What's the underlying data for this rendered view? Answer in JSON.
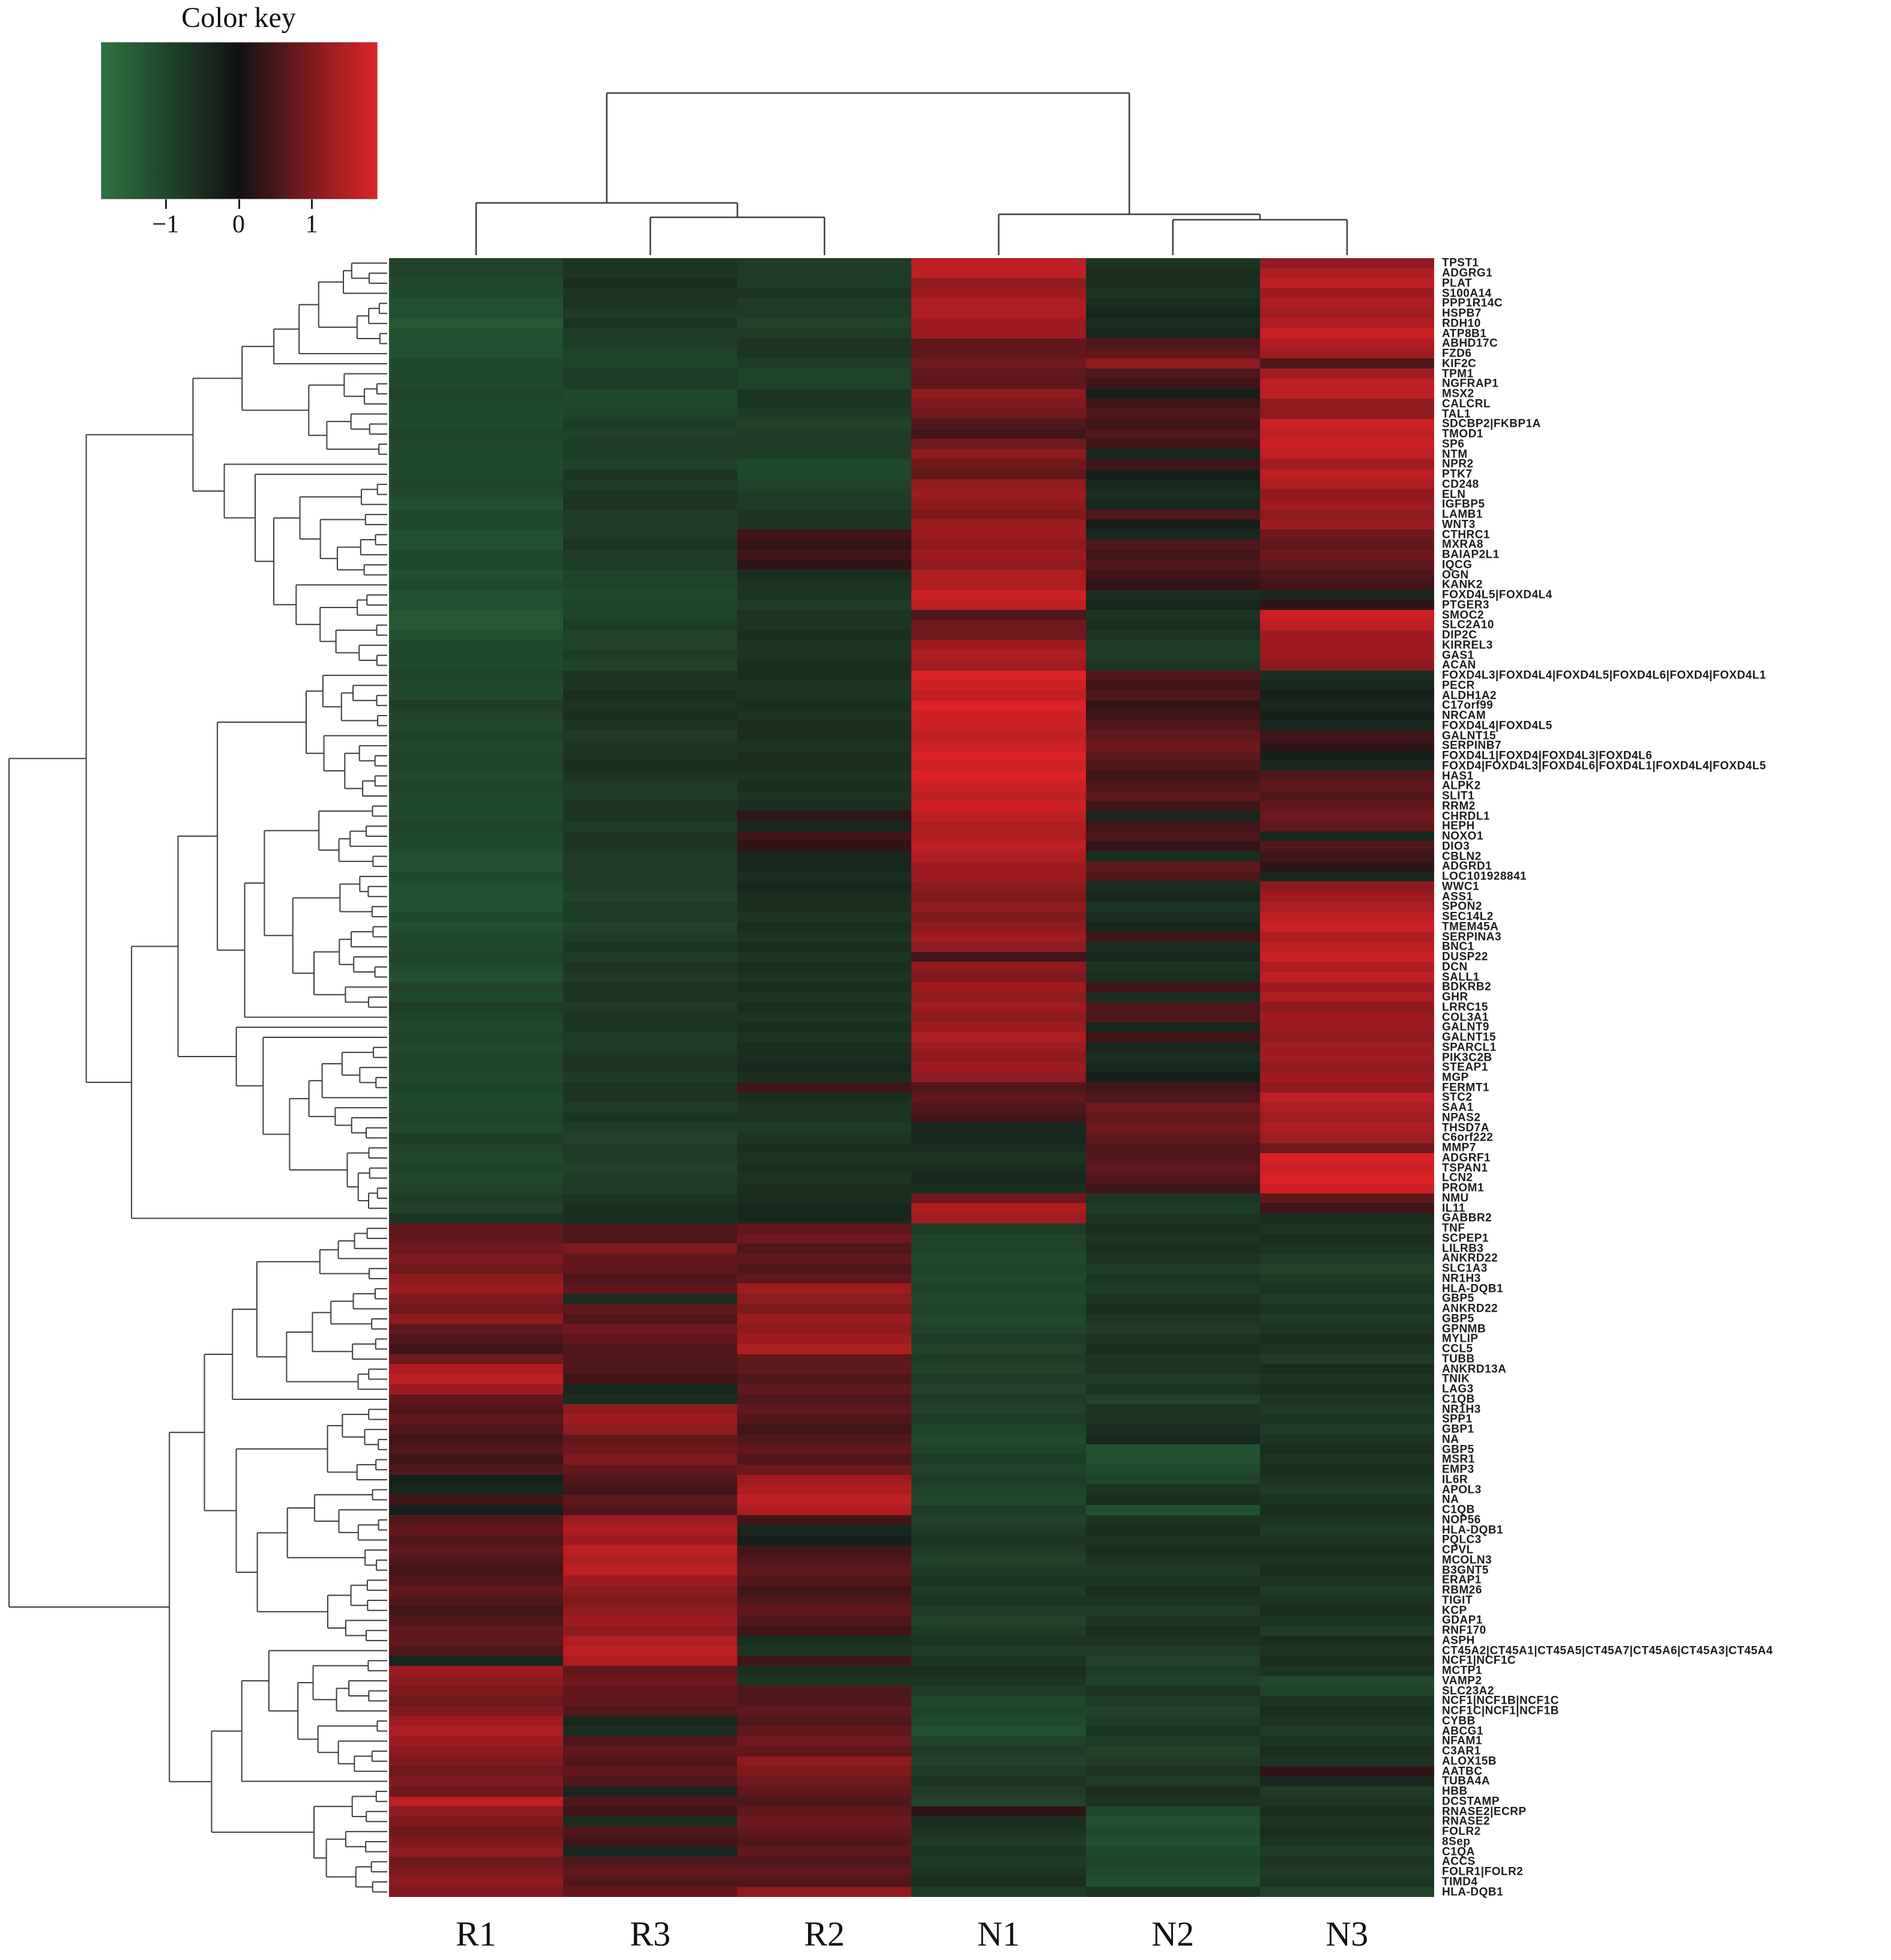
{
  "color_key": {
    "title": "Color key",
    "ticks": [
      "−1",
      "0",
      "1"
    ],
    "tick_positions_pct": [
      23.5,
      50,
      76.5
    ],
    "gradient_left_color": "#2d7340",
    "gradient_mid_color": "#121214",
    "gradient_right_color": "#e02428"
  },
  "chart_data": {
    "type": "heatmap",
    "title": "Color key",
    "legend_ticks": [
      -1,
      0,
      1
    ],
    "value_range": [
      -1.4,
      1.4
    ],
    "grid": false,
    "legend_position": "top-left",
    "column_dendrogram": "((R1,(R3,R2)),(N1,(N2,N3)))",
    "row_dendrogram": "two major clusters: rows TPST1..GABBR2 (down in R / up in N), rows TNF..HLA-DQB1 (up in R / down in N)",
    "columns": [
      "R1",
      "R3",
      "R2",
      "N1",
      "N2",
      "N3"
    ],
    "rows": [
      "TPST1",
      "ADGRG1",
      "PLAT",
      "S100A14",
      "PPP1R14C",
      "HSPB7",
      "RDH10",
      "ATP8B1",
      "ABHD17C",
      "FZD6",
      "KIF2C",
      "TPM1",
      "NGFRAP1",
      "MSX2",
      "CALCRL",
      "TAL1",
      "SDCBP2|FKBP1A",
      "TMOD1",
      "SP6",
      "NTM",
      "NPR2",
      "PTK7",
      "CD248",
      "ELN",
      "IGFBP5",
      "LAMB1",
      "WNT3",
      "CTHRC1",
      "MXRA8",
      "BAIAP2L1",
      "IQCG",
      "OGN",
      "KANK2",
      "FOXD4L5|FOXD4L4",
      "PTGER3",
      "SMOC2",
      "SLC2A10",
      "DIP2C",
      "KIRREL3",
      "GAS1",
      "ACAN",
      "FOXD4L3|FOXD4L4|FOXD4L5|FOXD4L6|FOXD4|FOXD4L1",
      "PECR",
      "ALDH1A2",
      "C17orf99",
      "NRCAM",
      "FOXD4L4|FOXD4L5",
      "GALNT15",
      "SERPINB7",
      "FOXD4L1|FOXD4|FOXD4L3|FOXD4L6",
      "FOXD4|FOXD4L3|FOXD4L6|FOXD4L1|FOXD4L4|FOXD4L5",
      "HAS1",
      "ALPK2",
      "SLIT1",
      "RRM2",
      "CHRDL1",
      "HEPH",
      "NOXO1",
      "DIO3",
      "CBLN2",
      "ADGRD1",
      "LOC101928841",
      "WWC1",
      "ASS1",
      "SPON2",
      "SEC14L2",
      "TMEM45A",
      "SERPINA3",
      "BNC1",
      "DUSP22",
      "DCN",
      "SALL1",
      "BDKRB2",
      "GHR",
      "LRRC15",
      "COL3A1",
      "GALNT9",
      "GALNT15",
      "SPARCL1",
      "PIK3C2B",
      "STEAP1",
      "MGP",
      "FERMT1",
      "STC2",
      "SAA1",
      "NPAS2",
      "THSD7A",
      "C6orf222",
      "MMP7",
      "ADGRF1",
      "TSPAN1",
      "LCN2",
      "PROM1",
      "NMU",
      "IL11",
      "GABBR2",
      "TNF",
      "SCPEP1",
      "LILRB3",
      "ANKRD22",
      "SLC1A3",
      "NR1H3",
      "HLA-DQB1",
      "GBP5",
      "ANKRD22",
      "GBP5",
      "GPNMB",
      "MYLIP",
      "CCL5",
      "TUBB",
      "ANKRD13A",
      "TNIK",
      "LAG3",
      "C1QB",
      "NR1H3",
      "SPP1",
      "GBP1",
      "NA",
      "GBP5",
      "MSR1",
      "EMP3",
      "IL6R",
      "APOL3",
      "NA",
      "C1QB",
      "NOP56",
      "HLA-DQB1",
      "PQLC3",
      "CPVL",
      "MCOLN3",
      "B3GNT5",
      "ERAP1",
      "RBM26",
      "TIGIT",
      "KCP",
      "GDAP1",
      "RNF170",
      "ASPH",
      "CT45A2|CT45A1|CT45A5|CT45A7|CT45A6|CT45A3|CT45A4",
      "NCF1|NCF1C",
      "MCTP1",
      "VAMP2",
      "SLC23A2",
      "NCF1|NCF1B|NCF1C",
      "NCF1C|NCF1|NCF1B",
      "CYBB",
      "ABCG1",
      "NFAM1",
      "C3AR1",
      "ALOX15B",
      "AATBC",
      "TUBA4A",
      "HBB",
      "DCSTAMP",
      "RNASE2|ECRP",
      "RNASE2",
      "FOLR2",
      "8Sep",
      "C1QA",
      "ACCS",
      "FOLR1|FOLR2",
      "TIMD4",
      "HLA-DQB1"
    ],
    "values": [
      [
        -0.7,
        -0.5,
        -0.6,
        1.1,
        -0.5,
        0.8
      ],
      [
        -0.7,
        -0.5,
        -0.6,
        1.1,
        -0.4,
        1.0
      ],
      [
        -0.8,
        -0.4,
        -0.6,
        0.8,
        -0.4,
        1.1
      ],
      [
        -0.8,
        -0.5,
        -0.5,
        0.9,
        -0.5,
        0.9
      ],
      [
        -0.9,
        -0.5,
        -0.6,
        1.0,
        -0.4,
        1.0
      ],
      [
        -0.9,
        -0.6,
        -0.6,
        1.0,
        -0.3,
        0.9
      ],
      [
        -1.0,
        -0.5,
        -0.7,
        0.9,
        -0.4,
        1.0
      ],
      [
        -0.9,
        -0.6,
        -0.6,
        0.9,
        -0.3,
        1.2
      ],
      [
        -0.9,
        -0.6,
        -0.5,
        0.5,
        0.4,
        1.0
      ],
      [
        -0.9,
        -0.7,
        -0.5,
        0.5,
        0.5,
        0.9
      ],
      [
        -0.8,
        -0.7,
        -0.6,
        0.6,
        0.8,
        0.4
      ],
      [
        -0.8,
        -0.6,
        -0.7,
        0.5,
        0.4,
        0.9
      ],
      [
        -0.8,
        -0.6,
        -0.7,
        0.5,
        0.3,
        1.1
      ],
      [
        -0.7,
        -0.8,
        -0.5,
        0.8,
        -0.2,
        1.1
      ],
      [
        -0.8,
        -0.8,
        -0.5,
        0.7,
        0.3,
        0.8
      ],
      [
        -0.8,
        -0.7,
        -0.6,
        0.6,
        0.4,
        0.8
      ],
      [
        -0.8,
        -0.6,
        -0.7,
        0.4,
        0.3,
        1.2
      ],
      [
        -0.7,
        -0.7,
        -0.6,
        0.3,
        0.4,
        1.1
      ],
      [
        -0.8,
        -0.6,
        -0.6,
        0.6,
        0.3,
        1.2
      ],
      [
        -0.8,
        -0.6,
        -0.6,
        0.8,
        -0.3,
        1.1
      ],
      [
        -0.8,
        -0.7,
        -0.8,
        0.6,
        0.3,
        0.9
      ],
      [
        -0.8,
        -0.5,
        -0.8,
        0.5,
        -0.2,
        1.1
      ],
      [
        -0.7,
        -0.6,
        -0.7,
        0.8,
        -0.3,
        1.0
      ],
      [
        -0.8,
        -0.5,
        -0.6,
        0.9,
        -0.4,
        0.8
      ],
      [
        -0.9,
        -0.5,
        -0.6,
        0.8,
        -0.3,
        0.9
      ],
      [
        -0.8,
        -0.6,
        -0.5,
        0.7,
        0.4,
        0.8
      ],
      [
        -0.8,
        -0.6,
        -0.5,
        0.9,
        -0.2,
        0.9
      ],
      [
        -0.9,
        -0.6,
        0.3,
        0.9,
        -0.3,
        0.6
      ],
      [
        -0.9,
        -0.5,
        0.2,
        0.8,
        0.4,
        0.5
      ],
      [
        -0.8,
        -0.6,
        0.3,
        0.9,
        0.3,
        0.6
      ],
      [
        -0.8,
        -0.6,
        0.2,
        0.8,
        0.4,
        0.5
      ],
      [
        -0.9,
        -0.7,
        -0.4,
        1.0,
        0.3,
        0.4
      ],
      [
        -0.8,
        -0.7,
        -0.5,
        1.0,
        0.2,
        0.3
      ],
      [
        -0.9,
        -0.8,
        -0.5,
        1.2,
        -0.4,
        -0.3
      ],
      [
        -0.9,
        -0.7,
        -0.6,
        1.1,
        -0.3,
        0.2
      ],
      [
        -1.0,
        -0.7,
        -0.5,
        0.4,
        -0.5,
        1.2
      ],
      [
        -1.0,
        -0.6,
        -0.5,
        0.6,
        -0.4,
        1.1
      ],
      [
        -0.9,
        -0.7,
        -0.4,
        0.6,
        -0.5,
        0.9
      ],
      [
        -0.8,
        -0.7,
        -0.5,
        0.9,
        -0.6,
        0.9
      ],
      [
        -0.8,
        -0.6,
        -0.5,
        1.0,
        -0.6,
        0.9
      ],
      [
        -0.8,
        -0.7,
        -0.4,
        0.9,
        -0.5,
        0.8
      ],
      [
        -0.7,
        -0.5,
        -0.4,
        1.3,
        0.4,
        -0.4
      ],
      [
        -0.8,
        -0.5,
        -0.5,
        1.2,
        0.3,
        -0.3
      ],
      [
        -0.8,
        -0.4,
        -0.5,
        1.1,
        0.4,
        -0.2
      ],
      [
        -0.6,
        -0.5,
        -0.4,
        1.3,
        0.2,
        -0.3
      ],
      [
        -0.7,
        -0.4,
        -0.5,
        1.2,
        0.3,
        -0.2
      ],
      [
        -0.8,
        -0.5,
        -0.4,
        1.2,
        0.4,
        -0.3
      ],
      [
        -0.7,
        -0.6,
        -0.4,
        1.1,
        0.5,
        0.3
      ],
      [
        -0.8,
        -0.5,
        -0.5,
        1.2,
        0.6,
        0.2
      ],
      [
        -0.7,
        -0.5,
        -0.4,
        1.3,
        0.5,
        -0.2
      ],
      [
        -0.7,
        -0.4,
        -0.4,
        1.2,
        0.4,
        -0.3
      ],
      [
        -0.8,
        -0.5,
        -0.5,
        1.3,
        0.3,
        0.4
      ],
      [
        -0.7,
        -0.6,
        -0.4,
        1.2,
        0.4,
        0.5
      ],
      [
        -0.8,
        -0.6,
        -0.5,
        1.1,
        0.5,
        0.4
      ],
      [
        -0.8,
        -0.5,
        -0.4,
        1.2,
        0.3,
        0.5
      ],
      [
        -0.8,
        -0.5,
        0.2,
        1.1,
        -0.3,
        0.6
      ],
      [
        -0.7,
        -0.6,
        -0.3,
        1.0,
        0.3,
        0.5
      ],
      [
        -0.8,
        -0.5,
        0.3,
        1.0,
        0.4,
        -0.3
      ],
      [
        -0.8,
        -0.5,
        0.2,
        1.1,
        0.2,
        0.4
      ],
      [
        -0.9,
        -0.6,
        -0.3,
        1.0,
        -0.4,
        0.3
      ],
      [
        -0.9,
        -0.6,
        -0.3,
        0.9,
        0.5,
        0.2
      ],
      [
        -0.8,
        -0.6,
        -0.4,
        0.9,
        0.4,
        -0.3
      ],
      [
        -0.9,
        -0.6,
        -0.3,
        0.8,
        -0.4,
        0.8
      ],
      [
        -0.9,
        -0.7,
        -0.4,
        0.7,
        -0.3,
        0.9
      ],
      [
        -0.9,
        -0.6,
        -0.4,
        0.8,
        -0.5,
        1.0
      ],
      [
        -0.8,
        -0.6,
        -0.5,
        0.7,
        -0.4,
        1.1
      ],
      [
        -0.9,
        -0.7,
        -0.4,
        0.8,
        -0.3,
        1.2
      ],
      [
        -0.8,
        -0.6,
        -0.5,
        0.9,
        0.3,
        1.0
      ],
      [
        -0.8,
        -0.5,
        -0.4,
        0.8,
        -0.4,
        1.1
      ],
      [
        -0.7,
        -0.6,
        -0.5,
        0.3,
        -0.3,
        1.2
      ],
      [
        -0.8,
        -0.5,
        -0.4,
        0.8,
        -0.5,
        1.0
      ],
      [
        -0.9,
        -0.6,
        -0.5,
        0.7,
        -0.4,
        1.1
      ],
      [
        -0.7,
        -0.5,
        -0.4,
        0.9,
        0.3,
        0.9
      ],
      [
        -0.8,
        -0.5,
        -0.5,
        0.8,
        -0.4,
        1.0
      ],
      [
        -0.6,
        -0.6,
        -0.4,
        0.9,
        0.4,
        0.8
      ],
      [
        -0.7,
        -0.5,
        -0.5,
        0.8,
        0.4,
        0.9
      ],
      [
        -0.8,
        -0.5,
        -0.4,
        0.9,
        -0.3,
        0.9
      ],
      [
        -0.7,
        -0.6,
        -0.5,
        1.0,
        0.3,
        0.8
      ],
      [
        -0.8,
        -0.6,
        -0.4,
        0.9,
        -0.3,
        0.9
      ],
      [
        -0.7,
        -0.5,
        -0.4,
        0.8,
        -0.4,
        0.9
      ],
      [
        -0.7,
        -0.5,
        -0.3,
        0.9,
        -0.3,
        0.8
      ],
      [
        -0.8,
        -0.6,
        -0.4,
        0.8,
        -0.2,
        0.9
      ],
      [
        -0.7,
        -0.5,
        0.3,
        0.4,
        0.3,
        0.8
      ],
      [
        -0.8,
        -0.5,
        -0.4,
        0.5,
        0.4,
        1.1
      ],
      [
        -0.8,
        -0.6,
        -0.5,
        0.4,
        0.6,
        1.0
      ],
      [
        -0.7,
        -0.5,
        -0.5,
        0.3,
        0.5,
        0.9
      ],
      [
        -0.8,
        -0.6,
        -0.6,
        -0.3,
        0.6,
        1.0
      ],
      [
        -0.6,
        -0.7,
        -0.5,
        -0.3,
        0.5,
        0.9
      ],
      [
        -0.7,
        -0.6,
        -0.4,
        -0.4,
        0.4,
        0.6
      ],
      [
        -0.8,
        -0.6,
        -0.5,
        -0.5,
        0.4,
        1.3
      ],
      [
        -0.7,
        -0.7,
        -0.4,
        -0.4,
        0.5,
        1.2
      ],
      [
        -0.8,
        -0.6,
        -0.5,
        -0.3,
        0.4,
        1.3
      ],
      [
        -0.7,
        -0.6,
        -0.4,
        -0.4,
        0.3,
        1.2
      ],
      [
        -0.6,
        -0.5,
        -0.4,
        0.6,
        -0.5,
        0.5
      ],
      [
        -0.7,
        -0.4,
        -0.3,
        1.0,
        -0.6,
        0.3
      ],
      [
        -0.5,
        -0.4,
        -0.3,
        0.9,
        -0.5,
        -0.4
      ],
      [
        0.5,
        0.4,
        0.5,
        -0.6,
        -0.4,
        -0.5
      ],
      [
        0.5,
        0.4,
        0.6,
        -0.7,
        -0.5,
        -0.4
      ],
      [
        0.6,
        0.7,
        0.4,
        -0.7,
        -0.4,
        -0.5
      ],
      [
        0.7,
        0.5,
        0.5,
        -0.8,
        -0.5,
        -0.6
      ],
      [
        0.6,
        0.5,
        0.4,
        -0.7,
        -0.6,
        -0.7
      ],
      [
        0.8,
        0.4,
        0.5,
        -0.8,
        -0.5,
        -0.6
      ],
      [
        0.9,
        0.5,
        0.9,
        -0.7,
        -0.6,
        -0.5
      ],
      [
        0.7,
        -0.4,
        0.8,
        -0.8,
        -0.5,
        -0.6
      ],
      [
        0.6,
        0.5,
        0.7,
        -0.7,
        -0.4,
        -0.5
      ],
      [
        0.8,
        0.4,
        0.9,
        -0.8,
        -0.5,
        -0.6
      ],
      [
        0.5,
        0.6,
        0.8,
        -0.7,
        -0.6,
        -0.5
      ],
      [
        0.4,
        0.5,
        0.9,
        -0.6,
        -0.5,
        -0.4
      ],
      [
        0.3,
        0.4,
        1.0,
        -0.7,
        -0.4,
        -0.5
      ],
      [
        0.6,
        0.4,
        0.5,
        -0.6,
        -0.5,
        -0.6
      ],
      [
        1.0,
        0.4,
        0.5,
        -0.7,
        -0.5,
        -0.4
      ],
      [
        1.1,
        0.3,
        0.4,
        -0.6,
        -0.6,
        -0.5
      ],
      [
        0.9,
        -0.3,
        0.5,
        -0.7,
        -0.5,
        -0.4
      ],
      [
        0.5,
        -0.4,
        0.4,
        -0.6,
        -0.7,
        -0.5
      ],
      [
        0.4,
        0.8,
        0.5,
        -0.7,
        -0.5,
        -0.6
      ],
      [
        0.5,
        0.9,
        0.4,
        -0.6,
        -0.5,
        -0.5
      ],
      [
        0.4,
        0.8,
        0.3,
        -0.7,
        -0.4,
        -0.6
      ],
      [
        0.3,
        0.5,
        0.4,
        -0.8,
        -0.3,
        -0.5
      ],
      [
        0.4,
        0.6,
        0.5,
        -0.7,
        -0.9,
        -0.4
      ],
      [
        0.3,
        0.7,
        0.4,
        -0.6,
        -0.9,
        -0.5
      ],
      [
        0.4,
        0.5,
        0.6,
        -0.7,
        -0.8,
        -0.4
      ],
      [
        -0.2,
        0.4,
        0.9,
        -0.6,
        -0.7,
        -0.5
      ],
      [
        -0.3,
        0.3,
        1.0,
        -0.7,
        -0.5,
        -0.6
      ],
      [
        0.3,
        0.5,
        1.1,
        -0.8,
        -0.4,
        -0.5
      ],
      [
        -0.2,
        0.4,
        1.0,
        -0.6,
        -0.9,
        -0.4
      ],
      [
        0.4,
        0.9,
        0.3,
        -0.7,
        -0.5,
        -0.5
      ],
      [
        0.5,
        1.0,
        -0.3,
        -0.6,
        -0.4,
        -0.6
      ],
      [
        0.4,
        0.9,
        -0.2,
        -0.5,
        -0.5,
        -0.5
      ],
      [
        0.5,
        1.1,
        0.3,
        -0.6,
        -0.4,
        -0.4
      ],
      [
        0.4,
        1.0,
        0.4,
        -0.7,
        -0.5,
        -0.5
      ],
      [
        0.3,
        1.1,
        0.5,
        -0.6,
        -0.6,
        -0.4
      ],
      [
        0.4,
        0.9,
        0.4,
        -0.5,
        -0.5,
        -0.5
      ],
      [
        0.5,
        0.8,
        0.3,
        -0.6,
        -0.4,
        -0.6
      ],
      [
        0.4,
        0.7,
        0.4,
        -0.5,
        -0.5,
        -0.5
      ],
      [
        0.3,
        0.8,
        0.5,
        -0.6,
        -0.6,
        -0.4
      ],
      [
        0.4,
        0.9,
        0.4,
        -0.7,
        -0.5,
        -0.5
      ],
      [
        0.5,
        0.8,
        0.3,
        -0.6,
        -0.4,
        -0.6
      ],
      [
        0.5,
        1.0,
        -0.4,
        -0.5,
        -0.5,
        -0.4
      ],
      [
        0.4,
        1.1,
        -0.5,
        -0.6,
        -0.6,
        -0.5
      ],
      [
        -0.3,
        1.0,
        0.3,
        -0.5,
        -0.7,
        -0.4
      ],
      [
        0.9,
        0.5,
        -0.4,
        -0.4,
        -0.6,
        -0.5
      ],
      [
        0.8,
        0.6,
        -0.5,
        -0.5,
        -0.7,
        -0.8
      ],
      [
        0.7,
        0.5,
        0.4,
        -0.6,
        -0.5,
        -0.7
      ],
      [
        0.6,
        0.5,
        0.4,
        -0.8,
        -0.6,
        -0.5
      ],
      [
        0.7,
        0.4,
        0.5,
        -0.7,
        -0.7,
        -0.4
      ],
      [
        0.9,
        -0.3,
        0.4,
        -0.8,
        -0.6,
        -0.5
      ],
      [
        1.0,
        -0.4,
        0.5,
        -0.9,
        -0.5,
        -0.6
      ],
      [
        0.9,
        0.4,
        0.6,
        -0.7,
        -0.6,
        -0.5
      ],
      [
        0.8,
        0.5,
        0.5,
        -0.6,
        -0.7,
        -0.4
      ],
      [
        0.7,
        0.4,
        0.8,
        -0.7,
        -0.6,
        -0.5
      ],
      [
        0.6,
        0.5,
        0.7,
        -0.6,
        -0.5,
        0.2
      ],
      [
        0.7,
        0.4,
        0.6,
        -0.5,
        -0.6,
        -0.3
      ],
      [
        0.6,
        -0.3,
        0.5,
        -0.6,
        -0.4,
        -0.6
      ],
      [
        1.1,
        0.4,
        0.4,
        -0.7,
        -0.5,
        -0.5
      ],
      [
        0.8,
        0.3,
        0.5,
        0.2,
        -0.8,
        -0.4
      ],
      [
        0.7,
        -0.4,
        0.6,
        -0.4,
        -0.9,
        -0.5
      ],
      [
        0.6,
        0.4,
        0.5,
        -0.5,
        -0.8,
        -0.4
      ],
      [
        0.7,
        0.3,
        0.4,
        -0.6,
        -0.9,
        -0.5
      ],
      [
        0.8,
        -0.3,
        0.5,
        -0.5,
        -0.8,
        -0.6
      ],
      [
        0.6,
        0.4,
        0.4,
        -0.6,
        -0.7,
        -0.5
      ],
      [
        0.7,
        0.5,
        0.5,
        -0.5,
        -0.8,
        -0.6
      ],
      [
        0.8,
        0.4,
        0.4,
        -0.4,
        -0.9,
        -0.5
      ],
      [
        0.7,
        0.5,
        0.8,
        -0.6,
        -0.5,
        -0.7
      ]
    ]
  }
}
